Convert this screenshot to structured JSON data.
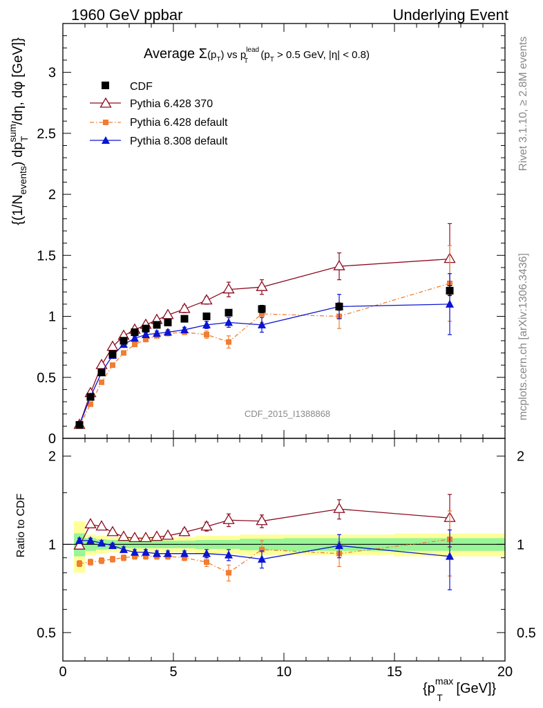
{
  "header": {
    "left": "1960 GeV ppbar",
    "right": "Underlying Event"
  },
  "side": {
    "rivet": "Rivet 3.1.10, ≥ 2.8M events",
    "mcplots": "mcplots.cern.ch [arXiv:1306.3436]"
  },
  "chart_data": {
    "type": "scatter",
    "title": "Average Σ(p_T) vs p_T^lead (p_T > 0.5 GeV, |η| < 0.8)",
    "title_parts": {
      "t1": "Average ",
      "sigma": "Σ",
      "t2": "(p",
      "sub1": "T",
      "t3": ") vs p",
      "sup_lead": "lead",
      "sub2": "T",
      "t4": " (p",
      "sub3": "T",
      "t5": " > 0.5 GeV, |",
      "eta": "η",
      "t6": "| < 0.8)"
    },
    "watermark": "CDF_2015_I1388868",
    "ylabel_parts": {
      "a": "{(1/N",
      "sub_events": "events",
      "b": ") dp",
      "sup_sum": "sum",
      "sub_T": "T",
      "c": "/dη, dφ [GeV]}"
    },
    "xlabel_parts": {
      "a": "{p",
      "sup_max": "max",
      "sub_T": "T",
      "b": " [GeV]}"
    },
    "ratio_ylabel": "Ratio to CDF",
    "xlim": [
      0,
      20
    ],
    "ylim": [
      0,
      3.4
    ],
    "ratio_ylim": [
      0.4,
      2.3
    ],
    "ratio_log": true,
    "xticks": [
      0,
      5,
      10,
      15,
      20
    ],
    "xtick_labels": [
      "0",
      "5",
      "10",
      "15",
      "20"
    ],
    "yticks": [
      0,
      0.5,
      1,
      1.5,
      2,
      2.5,
      3
    ],
    "ytick_labels": [
      "0",
      "0.5",
      "1",
      "1.5",
      "2",
      "2.5",
      "3"
    ],
    "ratio_yticks": [
      0.5,
      1,
      2
    ],
    "ratio_ytick_labels": [
      "0.5",
      "1",
      "2"
    ],
    "legend_position": "top-left",
    "x": [
      0.75,
      1.25,
      1.75,
      2.25,
      2.75,
      3.25,
      3.75,
      4.25,
      4.75,
      5.5,
      6.5,
      7.5,
      9.0,
      12.5,
      17.5
    ],
    "x_edges": [
      [
        0.5,
        1.0
      ],
      [
        1.0,
        1.5
      ],
      [
        1.5,
        2.0
      ],
      [
        2.0,
        2.5
      ],
      [
        2.5,
        3.0
      ],
      [
        3.0,
        3.5
      ],
      [
        3.5,
        4.0
      ],
      [
        4.0,
        4.5
      ],
      [
        4.5,
        5.0
      ],
      [
        5.0,
        6.0
      ],
      [
        6.0,
        7.0
      ],
      [
        7.0,
        8.0
      ],
      [
        8.0,
        10.0
      ],
      [
        10.0,
        15.0
      ],
      [
        15.0,
        20.0
      ]
    ],
    "data_band_inner": [
      0.09,
      0.05,
      0.04,
      0.035,
      0.03,
      0.03,
      0.03,
      0.03,
      0.03,
      0.03,
      0.035,
      0.035,
      0.045,
      0.05,
      0.05
    ],
    "data_band_outer": [
      0.2,
      0.08,
      0.07,
      0.06,
      0.06,
      0.06,
      0.06,
      0.06,
      0.06,
      0.06,
      0.07,
      0.07,
      0.08,
      0.08,
      0.09
    ],
    "series": [
      {
        "name": "CDF",
        "role": "data",
        "color": "#000000",
        "marker": "square",
        "values": [
          0.11,
          0.34,
          0.54,
          0.69,
          0.8,
          0.87,
          0.9,
          0.93,
          0.95,
          0.98,
          1.0,
          1.03,
          1.06,
          1.08,
          1.21
        ],
        "errors": [
          0.01,
          0.01,
          0.01,
          0.01,
          0.01,
          0.01,
          0.01,
          0.01,
          0.01,
          0.01,
          0.02,
          0.02,
          0.03,
          0.03,
          0.04
        ],
        "ratio": [
          1,
          1,
          1,
          1,
          1,
          1,
          1,
          1,
          1,
          1,
          1,
          1,
          1,
          1,
          1
        ]
      },
      {
        "name": "Pythia 6.428 370",
        "role": "mc",
        "color": "#8b0a1f",
        "marker": "triangle-open",
        "line": "solid",
        "values": [
          0.11,
          0.37,
          0.6,
          0.75,
          0.84,
          0.89,
          0.93,
          0.97,
          1.01,
          1.06,
          1.13,
          1.22,
          1.24,
          1.41,
          1.47
        ],
        "errors": [
          0.005,
          0.01,
          0.01,
          0.01,
          0.015,
          0.015,
          0.02,
          0.02,
          0.02,
          0.03,
          0.03,
          0.06,
          0.06,
          0.11,
          0.29
        ],
        "ratio": [
          0.99,
          1.17,
          1.15,
          1.1,
          1.06,
          1.05,
          1.05,
          1.06,
          1.07,
          1.1,
          1.15,
          1.21,
          1.2,
          1.32,
          1.23
        ],
        "ratio_errors": [
          0.02,
          0.02,
          0.02,
          0.02,
          0.02,
          0.02,
          0.02,
          0.02,
          0.02,
          0.03,
          0.04,
          0.06,
          0.06,
          0.1,
          0.25
        ]
      },
      {
        "name": "Pythia 6.428 default",
        "role": "mc",
        "color": "#f07d32",
        "marker": "square-small",
        "line": "dash-dot",
        "values": [
          0.1,
          0.28,
          0.46,
          0.6,
          0.7,
          0.77,
          0.81,
          0.84,
          0.86,
          0.87,
          0.85,
          0.79,
          1.02,
          1.0,
          1.27
        ],
        "errors": [
          0.005,
          0.01,
          0.01,
          0.01,
          0.01,
          0.01,
          0.015,
          0.015,
          0.02,
          0.02,
          0.03,
          0.05,
          0.07,
          0.1,
          0.31
        ],
        "ratio": [
          0.86,
          0.87,
          0.88,
          0.89,
          0.9,
          0.91,
          0.91,
          0.91,
          0.91,
          0.9,
          0.87,
          0.8,
          0.96,
          0.93,
          1.04
        ],
        "ratio_errors": [
          0.02,
          0.02,
          0.02,
          0.02,
          0.02,
          0.02,
          0.02,
          0.02,
          0.02,
          0.02,
          0.03,
          0.05,
          0.07,
          0.09,
          0.26
        ]
      },
      {
        "name": "Pythia 8.308 default",
        "role": "mc",
        "color": "#0a14d2",
        "marker": "triangle-filled",
        "line": "solid",
        "values": [
          0.11,
          0.34,
          0.54,
          0.68,
          0.77,
          0.82,
          0.85,
          0.86,
          0.87,
          0.89,
          0.93,
          0.95,
          0.93,
          1.08,
          1.1
        ],
        "errors": [
          0.005,
          0.01,
          0.01,
          0.01,
          0.015,
          0.015,
          0.015,
          0.02,
          0.02,
          0.02,
          0.03,
          0.04,
          0.06,
          0.1,
          0.25
        ],
        "ratio": [
          1.03,
          1.03,
          1.01,
          0.99,
          0.96,
          0.94,
          0.94,
          0.93,
          0.93,
          0.93,
          0.93,
          0.92,
          0.89,
          0.99,
          0.91
        ],
        "ratio_errors": [
          0.02,
          0.02,
          0.02,
          0.02,
          0.02,
          0.02,
          0.02,
          0.02,
          0.02,
          0.02,
          0.03,
          0.04,
          0.06,
          0.09,
          0.21
        ]
      }
    ]
  }
}
